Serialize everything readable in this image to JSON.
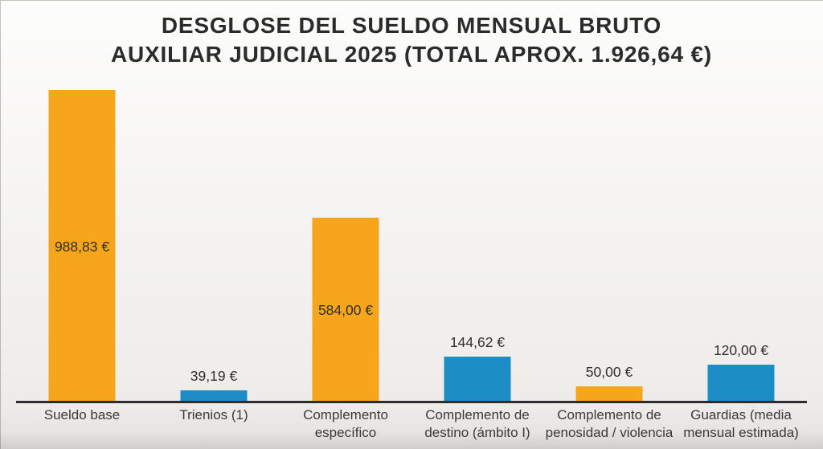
{
  "header": {
    "title_line1": "DESGLOSE DEL SUELDO MENSUAL BRUTO",
    "title_line2": "AUXILIAR JUDICIAL 2025 (TOTAL APROX. 1.926,64 €)"
  },
  "colors": {
    "orange": "#F7A51B",
    "blue": "#1C8DC5",
    "axis": "#2d2d2d",
    "title_text": "#2b2b2b",
    "label_text": "#3a3a3a"
  },
  "chart_data": {
    "type": "bar",
    "title": "DESGLOSE DEL SUELDO MENSUAL BRUTO AUXILIAR JUDICIAL 2025 (TOTAL APROX. 1.926,64 €)",
    "total_aprox_label": "1.926,64 €",
    "categories": [
      "Sueldo base",
      "Trienios (1)",
      "Complemento específico",
      "Complemento de destino (ámbito I)",
      "Complemento de penosidad / violencia",
      "Guardias (media mensual estimada)"
    ],
    "category_display": [
      "Sueldo base",
      "Trienios (1)",
      "Complemento\nespecífico",
      "Complemento de\ndestino (ámbito I)",
      "Complemento de\npenosidad / violencia",
      "Guardias (media\nmensual estimada)"
    ],
    "values": [
      988.83,
      39.19,
      584.0,
      144.62,
      50.0,
      120.0
    ],
    "value_labels": [
      "988,83 €",
      "39,19 €",
      "584,00 €",
      "144,62 €",
      "50,00 €",
      "120,00 €"
    ],
    "bar_colors": [
      "#F7A51B",
      "#1C8DC5",
      "#F7A51B",
      "#1C8DC5",
      "#F7A51B",
      "#1C8DC5"
    ],
    "value_label_placement": [
      "inside",
      "above",
      "inside",
      "above",
      "above",
      "above"
    ],
    "xlabel": "",
    "ylabel": "",
    "ylim": [
      0,
      1000
    ],
    "grid": false,
    "legend": false
  }
}
